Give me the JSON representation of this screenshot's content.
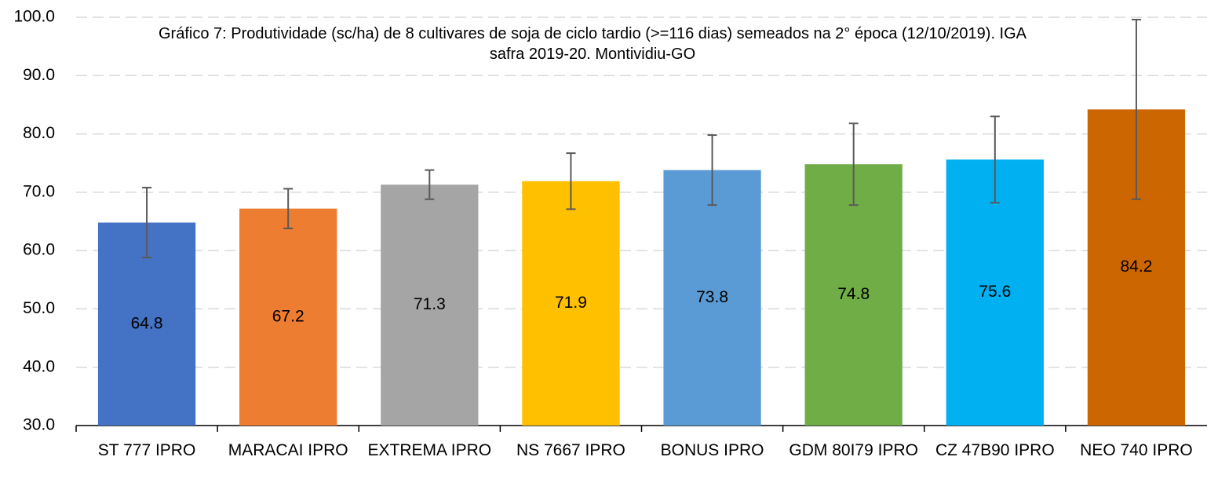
{
  "chart_data": {
    "type": "bar",
    "title": "Gráfico 7: Produtividade (sc/ha) de 8 cultivares de soja de ciclo tardio (>=116 dias) semeados na 2° época (12/10/2019). IGA safra 2019-20. Montividiu-GO",
    "categories": [
      "ST 777 IPRO",
      "MARACAI IPRO",
      "EXTREMA IPRO",
      "NS 7667 IPRO",
      "BONUS IPRO",
      "GDM 80I79 IPRO",
      "CZ 47B90 IPRO",
      "NEO 740 IPRO"
    ],
    "values": [
      64.8,
      67.2,
      71.3,
      71.9,
      73.8,
      74.8,
      75.6,
      84.2
    ],
    "errors": [
      6.0,
      3.4,
      2.5,
      4.8,
      6.0,
      7.0,
      7.4,
      15.4
    ],
    "colors": [
      "#4472c4",
      "#ed7d31",
      "#a5a5a5",
      "#ffc000",
      "#5b9bd5",
      "#70ad47",
      "#00b0f0",
      "#cc6600"
    ],
    "ylim": [
      30,
      100
    ],
    "yticks": [
      {
        "value": 30,
        "label": "30.0"
      },
      {
        "value": 40,
        "label": "40.0"
      },
      {
        "value": 50,
        "label": "50.0"
      },
      {
        "value": 60,
        "label": "60.0"
      },
      {
        "value": 70,
        "label": "70.0"
      },
      {
        "value": 80,
        "label": "80.0"
      },
      {
        "value": 90,
        "label": "90.0"
      },
      {
        "value": 100,
        "label": "100.0"
      }
    ],
    "grid": true
  }
}
